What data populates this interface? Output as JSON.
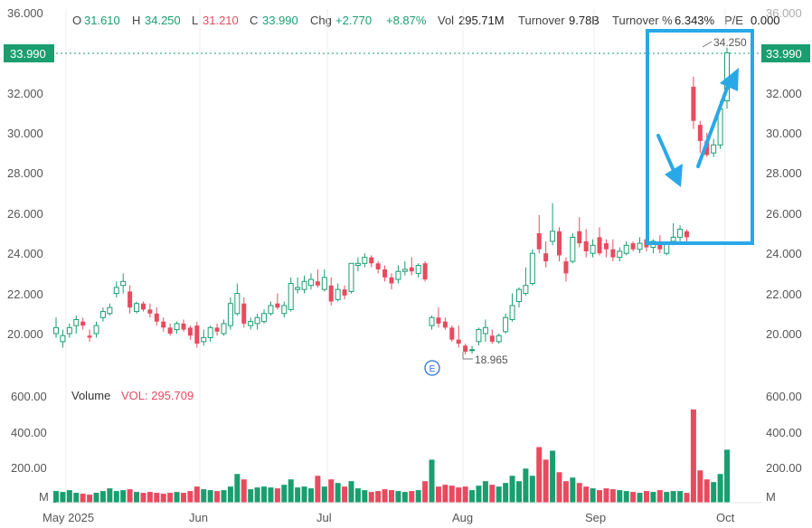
{
  "header": {
    "open_label": "O",
    "open": "31.610",
    "high_label": "H",
    "high": "34.250",
    "low_label": "L",
    "low": "31.210",
    "close_label": "C",
    "close": "33.990",
    "chg_label": "Chg",
    "chg": "+2.770",
    "chg_pct": "+8.87%",
    "vol_label": "Vol",
    "vol": "295.71M",
    "turnover_label": "Turnover",
    "turnover": "9.78B",
    "turnover_pct_label": "Turnover %",
    "turnover_pct": "6.343%",
    "pe_label": "P/E",
    "pe": "0.000"
  },
  "price_axis": {
    "left_ticks": [
      "36.000",
      "32.000",
      "30.000",
      "28.000",
      "26.000",
      "24.000",
      "22.000",
      "20.000"
    ],
    "right_ticks": [
      "36.000",
      "32.000",
      "30.000",
      "28.000",
      "26.000",
      "24.000",
      "22.000",
      "20.000"
    ],
    "last_price": "33.990"
  },
  "volume": {
    "title": "Volume",
    "vol_text": "VOL: 295.709",
    "left_ticks": [
      "600.00",
      "400.00",
      "200.00",
      "M"
    ],
    "right_ticks": [
      "600.00",
      "400.00",
      "200.00",
      "M"
    ]
  },
  "annotations": {
    "high_label": "34.250",
    "low_label": "18.965",
    "earnings_marker": "E"
  },
  "x_axis": {
    "labels": [
      "May 2025",
      "Jun",
      "Jul",
      "Aug",
      "Sep",
      "Oct"
    ]
  },
  "colors": {
    "up": "#1a9e6f",
    "down": "#e84a5f",
    "price_tag": "#1a9e6f",
    "highlight": "#29a8e8",
    "earnings": "#2f6fd6"
  },
  "chart_data": {
    "type": "candlestick",
    "price_range": [
      17.2,
      36
    ],
    "volume_range": [
      0,
      600
    ],
    "volume_unit": "M",
    "candles": [
      {
        "o": 20.0,
        "h": 20.8,
        "l": 19.8,
        "c": 20.3,
        "v": 65
      },
      {
        "o": 19.6,
        "h": 20.2,
        "l": 19.3,
        "c": 19.9,
        "v": 60
      },
      {
        "o": 20.0,
        "h": 20.5,
        "l": 19.8,
        "c": 20.3,
        "v": 70
      },
      {
        "o": 20.4,
        "h": 20.9,
        "l": 20.0,
        "c": 20.7,
        "v": 55
      },
      {
        "o": 20.6,
        "h": 20.8,
        "l": 20.2,
        "c": 20.4,
        "v": 50
      },
      {
        "o": 19.9,
        "h": 20.2,
        "l": 19.6,
        "c": 19.8,
        "v": 45
      },
      {
        "o": 20.0,
        "h": 20.6,
        "l": 19.8,
        "c": 20.4,
        "v": 55
      },
      {
        "o": 20.8,
        "h": 21.3,
        "l": 20.6,
        "c": 21.1,
        "v": 65
      },
      {
        "o": 21.0,
        "h": 21.5,
        "l": 20.9,
        "c": 21.3,
        "v": 80
      },
      {
        "o": 22.0,
        "h": 22.6,
        "l": 21.8,
        "c": 22.3,
        "v": 65
      },
      {
        "o": 22.4,
        "h": 23.0,
        "l": 22.0,
        "c": 22.6,
        "v": 70
      },
      {
        "o": 22.1,
        "h": 22.4,
        "l": 21.0,
        "c": 21.3,
        "v": 75
      },
      {
        "o": 21.1,
        "h": 21.6,
        "l": 21.0,
        "c": 21.5,
        "v": 60
      },
      {
        "o": 21.5,
        "h": 21.6,
        "l": 21.1,
        "c": 21.2,
        "v": 55
      },
      {
        "o": 21.2,
        "h": 21.5,
        "l": 20.8,
        "c": 21.0,
        "v": 60
      },
      {
        "o": 21.0,
        "h": 21.3,
        "l": 20.4,
        "c": 20.6,
        "v": 55
      },
      {
        "o": 20.6,
        "h": 20.8,
        "l": 20.1,
        "c": 20.3,
        "v": 50
      },
      {
        "o": 20.3,
        "h": 20.5,
        "l": 19.9,
        "c": 20.0,
        "v": 55
      },
      {
        "o": 20.2,
        "h": 20.6,
        "l": 20.0,
        "c": 20.5,
        "v": 60
      },
      {
        "o": 20.5,
        "h": 20.7,
        "l": 20.1,
        "c": 20.2,
        "v": 55
      },
      {
        "o": 20.3,
        "h": 20.4,
        "l": 19.7,
        "c": 19.9,
        "v": 65
      },
      {
        "o": 20.4,
        "h": 20.6,
        "l": 19.3,
        "c": 19.5,
        "v": 90
      },
      {
        "o": 19.6,
        "h": 20.2,
        "l": 19.4,
        "c": 19.8,
        "v": 75
      },
      {
        "o": 19.8,
        "h": 20.4,
        "l": 19.6,
        "c": 20.3,
        "v": 70
      },
      {
        "o": 20.3,
        "h": 20.5,
        "l": 19.9,
        "c": 20.1,
        "v": 65
      },
      {
        "o": 20.0,
        "h": 20.7,
        "l": 19.9,
        "c": 20.5,
        "v": 70
      },
      {
        "o": 20.4,
        "h": 21.8,
        "l": 20.2,
        "c": 21.5,
        "v": 90
      },
      {
        "o": 21.0,
        "h": 22.5,
        "l": 20.9,
        "c": 22.0,
        "v": 160
      },
      {
        "o": 21.5,
        "h": 21.8,
        "l": 20.3,
        "c": 20.5,
        "v": 130
      },
      {
        "o": 20.4,
        "h": 20.8,
        "l": 20.2,
        "c": 20.6,
        "v": 75
      },
      {
        "o": 20.5,
        "h": 21.0,
        "l": 20.2,
        "c": 20.8,
        "v": 85
      },
      {
        "o": 20.6,
        "h": 21.2,
        "l": 20.5,
        "c": 21.0,
        "v": 90
      },
      {
        "o": 21.0,
        "h": 21.6,
        "l": 20.9,
        "c": 21.4,
        "v": 85
      },
      {
        "o": 21.5,
        "h": 22.0,
        "l": 21.2,
        "c": 21.3,
        "v": 80
      },
      {
        "o": 21.0,
        "h": 21.6,
        "l": 20.8,
        "c": 21.4,
        "v": 100
      },
      {
        "o": 21.2,
        "h": 22.8,
        "l": 21.1,
        "c": 22.5,
        "v": 130
      },
      {
        "o": 22.2,
        "h": 22.8,
        "l": 22.0,
        "c": 22.3,
        "v": 85
      },
      {
        "o": 22.2,
        "h": 22.9,
        "l": 22.0,
        "c": 22.6,
        "v": 90
      },
      {
        "o": 22.4,
        "h": 23.0,
        "l": 22.2,
        "c": 22.7,
        "v": 80
      },
      {
        "o": 22.6,
        "h": 23.2,
        "l": 22.3,
        "c": 22.4,
        "v": 150
      },
      {
        "o": 22.2,
        "h": 23.2,
        "l": 22.1,
        "c": 22.8,
        "v": 90
      },
      {
        "o": 22.4,
        "h": 22.8,
        "l": 21.4,
        "c": 21.6,
        "v": 130
      },
      {
        "o": 21.7,
        "h": 22.5,
        "l": 21.6,
        "c": 22.2,
        "v": 110
      },
      {
        "o": 22.2,
        "h": 22.4,
        "l": 21.7,
        "c": 21.9,
        "v": 90
      },
      {
        "o": 22.1,
        "h": 23.5,
        "l": 22.0,
        "c": 23.5,
        "v": 120
      },
      {
        "o": 23.4,
        "h": 23.8,
        "l": 23.1,
        "c": 23.5,
        "v": 80
      },
      {
        "o": 23.5,
        "h": 24.0,
        "l": 23.3,
        "c": 23.8,
        "v": 70
      },
      {
        "o": 23.8,
        "h": 23.9,
        "l": 23.3,
        "c": 23.5,
        "v": 60
      },
      {
        "o": 23.5,
        "h": 23.6,
        "l": 23.0,
        "c": 23.2,
        "v": 65
      },
      {
        "o": 23.2,
        "h": 23.4,
        "l": 22.6,
        "c": 22.8,
        "v": 75
      },
      {
        "o": 22.8,
        "h": 23.0,
        "l": 22.2,
        "c": 22.5,
        "v": 70
      },
      {
        "o": 22.7,
        "h": 23.4,
        "l": 22.5,
        "c": 23.1,
        "v": 65
      },
      {
        "o": 23.1,
        "h": 23.6,
        "l": 22.9,
        "c": 23.2,
        "v": 60
      },
      {
        "o": 23.3,
        "h": 23.8,
        "l": 22.9,
        "c": 23.1,
        "v": 65
      },
      {
        "o": 23.0,
        "h": 23.5,
        "l": 22.8,
        "c": 23.4,
        "v": 70
      },
      {
        "o": 23.5,
        "h": 23.6,
        "l": 22.6,
        "c": 22.7,
        "v": 120
      },
      {
        "o": 20.4,
        "h": 20.9,
        "l": 20.2,
        "c": 20.8,
        "v": 240
      },
      {
        "o": 20.8,
        "h": 21.3,
        "l": 20.3,
        "c": 20.5,
        "v": 90
      },
      {
        "o": 20.6,
        "h": 20.8,
        "l": 20.2,
        "c": 20.3,
        "v": 100
      },
      {
        "o": 20.3,
        "h": 20.4,
        "l": 19.6,
        "c": 19.7,
        "v": 95
      },
      {
        "o": 19.7,
        "h": 20.4,
        "l": 19.3,
        "c": 19.5,
        "v": 85
      },
      {
        "o": 19.4,
        "h": 19.5,
        "l": 18.965,
        "c": 19.1,
        "v": 90
      },
      {
        "o": 19.2,
        "h": 19.4,
        "l": 19.0,
        "c": 19.2,
        "v": 70
      },
      {
        "o": 19.6,
        "h": 20.3,
        "l": 19.4,
        "c": 20.2,
        "v": 95
      },
      {
        "o": 20.0,
        "h": 20.7,
        "l": 19.6,
        "c": 20.3,
        "v": 120
      },
      {
        "o": 19.9,
        "h": 20.2,
        "l": 19.5,
        "c": 19.6,
        "v": 100
      },
      {
        "o": 19.6,
        "h": 20.0,
        "l": 19.5,
        "c": 19.9,
        "v": 90
      },
      {
        "o": 20.1,
        "h": 21.0,
        "l": 20.0,
        "c": 20.8,
        "v": 110
      },
      {
        "o": 20.7,
        "h": 22.0,
        "l": 20.6,
        "c": 21.4,
        "v": 150
      },
      {
        "o": 21.6,
        "h": 22.3,
        "l": 21.3,
        "c": 22.2,
        "v": 120
      },
      {
        "o": 22.0,
        "h": 23.3,
        "l": 21.9,
        "c": 22.4,
        "v": 190
      },
      {
        "o": 22.5,
        "h": 24.2,
        "l": 22.4,
        "c": 24.0,
        "v": 150
      },
      {
        "o": 25.0,
        "h": 25.9,
        "l": 24.0,
        "c": 24.2,
        "v": 310
      },
      {
        "o": 24.0,
        "h": 24.6,
        "l": 23.3,
        "c": 23.6,
        "v": 240
      },
      {
        "o": 24.6,
        "h": 26.5,
        "l": 24.4,
        "c": 25.1,
        "v": 290
      },
      {
        "o": 25.1,
        "h": 25.3,
        "l": 23.6,
        "c": 23.9,
        "v": 170
      },
      {
        "o": 23.6,
        "h": 23.8,
        "l": 22.6,
        "c": 23.0,
        "v": 120
      },
      {
        "o": 23.6,
        "h": 25.0,
        "l": 23.5,
        "c": 24.8,
        "v": 140
      },
      {
        "o": 25.1,
        "h": 25.8,
        "l": 24.3,
        "c": 24.5,
        "v": 110
      },
      {
        "o": 24.6,
        "h": 25.2,
        "l": 23.8,
        "c": 24.1,
        "v": 90
      },
      {
        "o": 24.0,
        "h": 24.7,
        "l": 23.8,
        "c": 24.4,
        "v": 80
      },
      {
        "o": 24.8,
        "h": 25.3,
        "l": 23.9,
        "c": 24.0,
        "v": 70
      },
      {
        "o": 24.5,
        "h": 24.7,
        "l": 23.8,
        "c": 24.2,
        "v": 80
      },
      {
        "o": 24.2,
        "h": 24.7,
        "l": 23.6,
        "c": 23.8,
        "v": 75
      },
      {
        "o": 23.8,
        "h": 24.3,
        "l": 23.6,
        "c": 24.1,
        "v": 70
      },
      {
        "o": 24.0,
        "h": 24.6,
        "l": 23.9,
        "c": 24.4,
        "v": 65
      },
      {
        "o": 24.5,
        "h": 24.6,
        "l": 24.1,
        "c": 24.2,
        "v": 60
      },
      {
        "o": 24.2,
        "h": 24.8,
        "l": 24.0,
        "c": 24.5,
        "v": 55
      },
      {
        "o": 24.7,
        "h": 24.8,
        "l": 24.1,
        "c": 24.3,
        "v": 65
      },
      {
        "o": 24.3,
        "h": 24.7,
        "l": 24.0,
        "c": 24.6,
        "v": 60
      },
      {
        "o": 24.6,
        "h": 24.9,
        "l": 24.0,
        "c": 24.2,
        "v": 70
      },
      {
        "o": 24.0,
        "h": 24.6,
        "l": 23.9,
        "c": 24.5,
        "v": 60
      },
      {
        "o": 24.6,
        "h": 25.5,
        "l": 24.4,
        "c": 24.8,
        "v": 65
      },
      {
        "o": 24.8,
        "h": 25.4,
        "l": 24.6,
        "c": 25.2,
        "v": 65
      },
      {
        "o": 25.1,
        "h": 25.2,
        "l": 24.6,
        "c": 24.8,
        "v": 55
      },
      {
        "o": 32.3,
        "h": 32.8,
        "l": 30.2,
        "c": 30.6,
        "v": 520
      },
      {
        "o": 30.4,
        "h": 30.6,
        "l": 29.0,
        "c": 29.6,
        "v": 180
      },
      {
        "o": 29.6,
        "h": 30.0,
        "l": 28.8,
        "c": 28.9,
        "v": 130
      },
      {
        "o": 29.0,
        "h": 29.7,
        "l": 28.8,
        "c": 29.4,
        "v": 115
      },
      {
        "o": 29.4,
        "h": 31.6,
        "l": 29.2,
        "c": 31.2,
        "v": 160
      },
      {
        "o": 31.6,
        "h": 34.25,
        "l": 31.21,
        "c": 33.99,
        "v": 295.709
      }
    ]
  }
}
